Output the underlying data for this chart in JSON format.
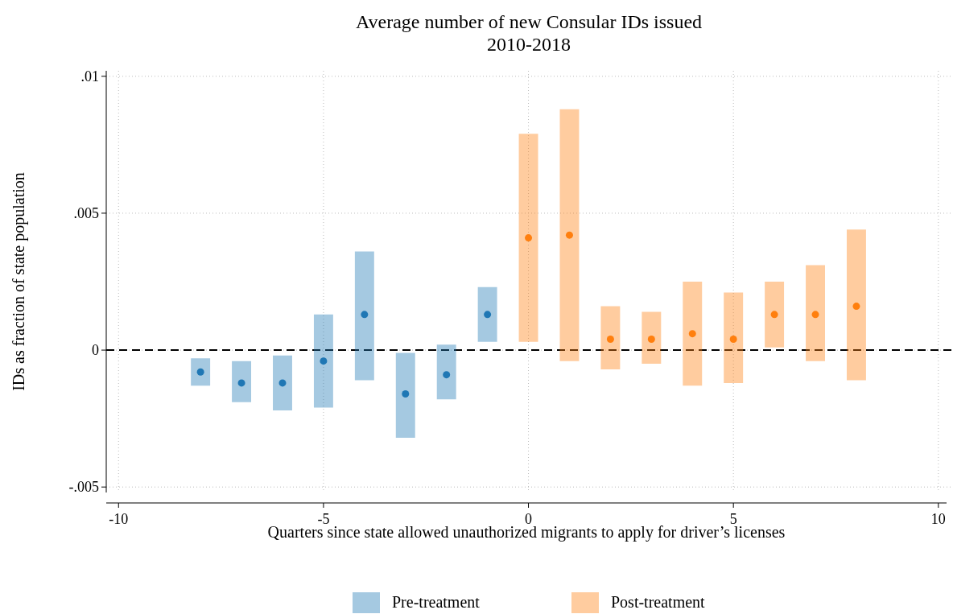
{
  "chart_data": {
    "type": "scatter",
    "title": "Average number of new Consular IDs issued",
    "subtitle": "2010-2018",
    "xlabel": "Quarters since state allowed unauthorized migrants to apply for driver’s licenses",
    "ylabel": "IDs as fraction of state population",
    "xlim": [
      -10.3,
      10.2
    ],
    "xticks": [
      -10,
      -5,
      0,
      5,
      10
    ],
    "ylim": [
      -0.0052,
      0.0102
    ],
    "yticks": [
      {
        "value": -0.005,
        "label": "-.005"
      },
      0,
      {
        "value": 0.005,
        "label": ".005"
      },
      {
        "value": 0.01,
        "label": ".01"
      }
    ],
    "grid": true,
    "legend": "bottom",
    "marker": "circle",
    "ref_lines": [
      {
        "axis": "y",
        "value": 0,
        "color": "#000000",
        "line_style": "dashed"
      }
    ],
    "series": [
      {
        "name": "Pre-treatment",
        "color": "#1f77b4",
        "x": [
          -8,
          -7,
          -6,
          -5,
          -4,
          -3,
          -2,
          -1
        ],
        "values": [
          -0.0008,
          -0.0012,
          -0.0012,
          -0.0004,
          0.0013,
          -0.0016,
          -0.0009,
          0.0013
        ],
        "errors": [
          [
            -0.0013,
            -0.0003
          ],
          [
            -0.0019,
            -0.0004
          ],
          [
            -0.0022,
            -0.0002
          ],
          [
            -0.0021,
            0.0013
          ],
          [
            -0.0011,
            0.0036
          ],
          [
            -0.0032,
            -0.0001
          ],
          [
            -0.0018,
            0.0002
          ],
          [
            0.0003,
            0.0023
          ]
        ]
      },
      {
        "name": "Post-treatment",
        "color": "#ff7f0e",
        "x": [
          0,
          1,
          2,
          3,
          4,
          5,
          6,
          7,
          8
        ],
        "values": [
          0.0041,
          0.0042,
          0.0004,
          0.0004,
          0.0006,
          0.0004,
          0.0013,
          0.0013,
          0.0016
        ],
        "errors": [
          [
            0.0003,
            0.0079
          ],
          [
            -0.0004,
            0.0088
          ],
          [
            -0.0007,
            0.0016
          ],
          [
            -0.0005,
            0.0014
          ],
          [
            -0.0013,
            0.0025
          ],
          [
            -0.0012,
            0.0021
          ],
          [
            0.0001,
            0.0025
          ],
          [
            -0.0004,
            0.0031
          ],
          [
            -0.0011,
            0.0044
          ]
        ]
      }
    ]
  }
}
